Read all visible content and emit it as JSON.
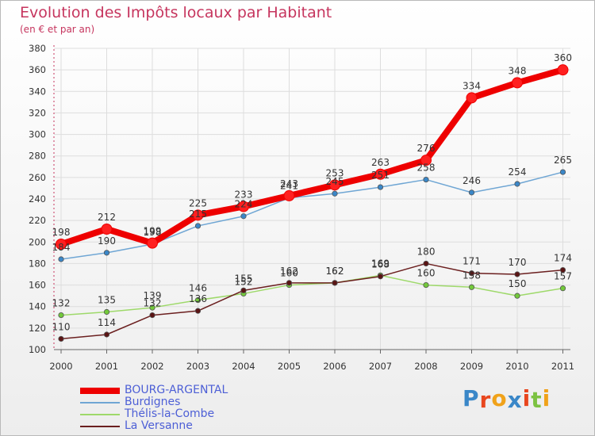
{
  "header": {
    "title": "Evolution des Impôts locaux par Habitant",
    "subtitle": "(en € et par an)"
  },
  "colors": {
    "background_top": "#ffffff",
    "background_bottom": "#ededed",
    "grid": "#dddddd",
    "title": "#c6355e",
    "legend_text": "#4d5fd6"
  },
  "chart_data": {
    "type": "line",
    "title": "Evolution des Impôts locaux par Habitant",
    "subtitle": "(en € et par an)",
    "xlabel": "",
    "ylabel": "",
    "x": [
      2000,
      2001,
      2002,
      2003,
      2004,
      2005,
      2006,
      2007,
      2008,
      2009,
      2010,
      2011
    ],
    "ylim": [
      100,
      380
    ],
    "yticks": [
      100,
      120,
      140,
      160,
      180,
      200,
      220,
      240,
      260,
      280,
      300,
      320,
      340,
      360,
      380
    ],
    "grid": true,
    "legend_position": "bottom-left",
    "series": [
      {
        "name": "BOURG-ARGENTAL",
        "color": "#ee0000",
        "marker_color": "#ff2020",
        "emphasis": true,
        "values": [
          198,
          212,
          199,
          225,
          233,
          243,
          253,
          263,
          276,
          334,
          348,
          360
        ]
      },
      {
        "name": "Burdignes",
        "color": "#6fa6d4",
        "marker_color": "#3a87c8",
        "emphasis": false,
        "values": [
          184,
          190,
          198,
          215,
          224,
          241,
          245,
          251,
          258,
          246,
          254,
          265
        ]
      },
      {
        "name": "Thélis-la-Combe",
        "color": "#9ed96a",
        "marker_color": "#72c93a",
        "emphasis": false,
        "values": [
          132,
          135,
          139,
          146,
          152,
          160,
          162,
          169,
          160,
          158,
          150,
          157
        ]
      },
      {
        "name": "La Versanne",
        "color": "#6b1f1f",
        "marker_color": "#5a1414",
        "emphasis": false,
        "values": [
          110,
          114,
          132,
          136,
          155,
          162,
          162,
          168,
          180,
          171,
          170,
          174
        ]
      }
    ]
  },
  "logo": {
    "letters": [
      "P",
      "r",
      "o",
      "x",
      "i",
      "t",
      "i"
    ],
    "colors": [
      "#3a87c8",
      "#e8461e",
      "#f0a21a",
      "#3a87c8",
      "#e8461e",
      "#7cc242",
      "#f0a21a"
    ]
  }
}
